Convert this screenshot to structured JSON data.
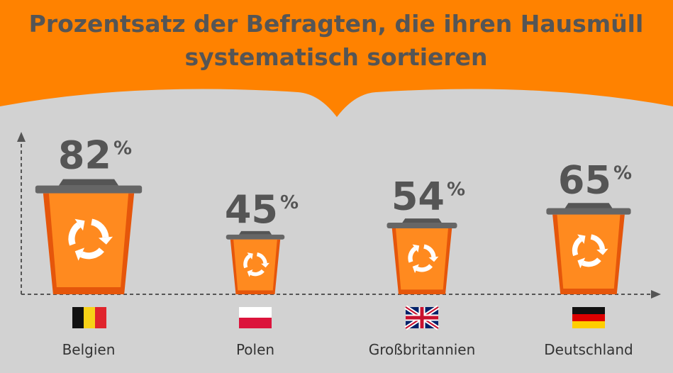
{
  "chart_data": {
    "type": "bar",
    "title": [
      "Prozentsatz der Befragten, die ihren Hausmüll",
      "systematisch sortieren"
    ],
    "categories": [
      "Belgien",
      "Polen",
      "Großbritannien",
      "Deutschland"
    ],
    "values": [
      82,
      45,
      54,
      65
    ],
    "unit": "%",
    "color": "#ff8a1f",
    "ylim": [
      0,
      100
    ]
  }
}
